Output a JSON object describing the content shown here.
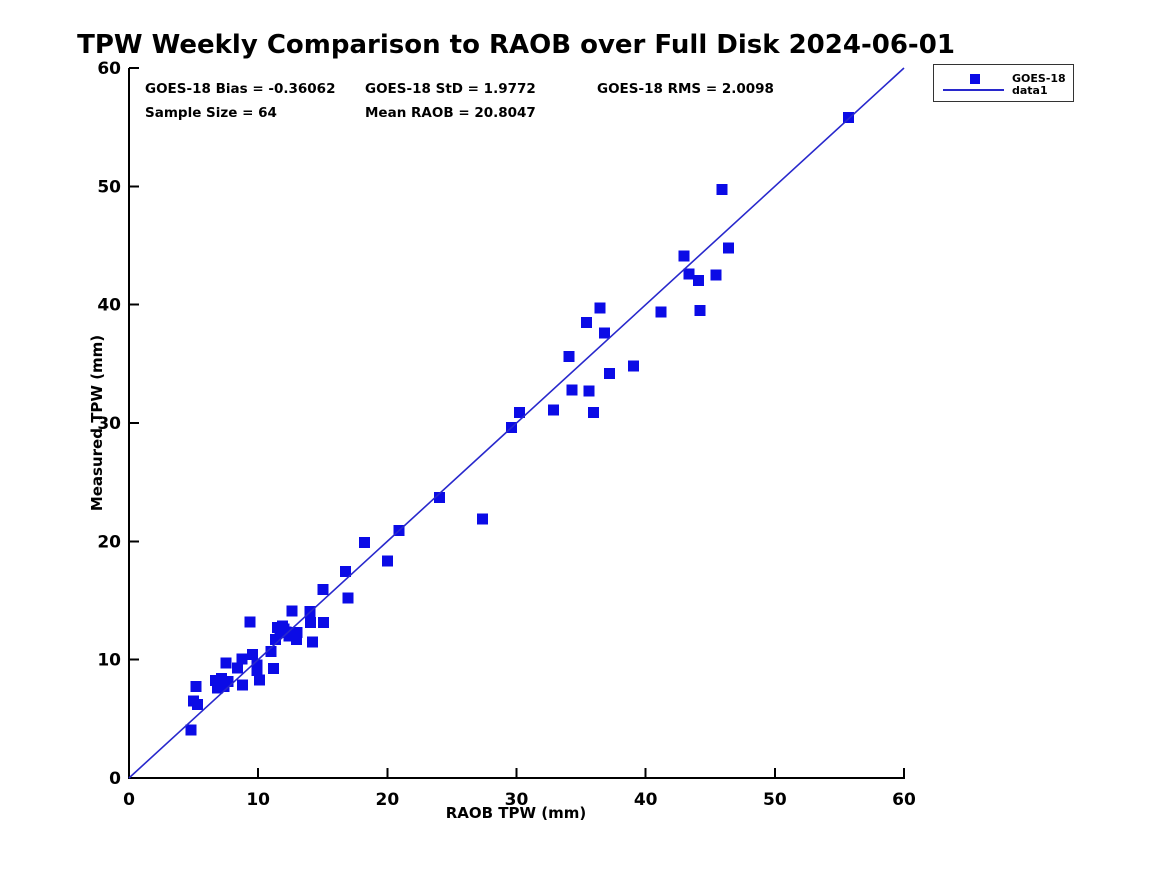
{
  "stats": {
    "bias": "GOES-18 Bias = -0.36062",
    "std": "GOES-18 StD = 1.9772",
    "rms": "GOES-18 RMS = 2.0098",
    "sample_size": "Sample Size = 64",
    "mean_raob": "Mean RAOB = 20.8047"
  },
  "chart_data": {
    "type": "scatter",
    "title": "TPW Weekly Comparison to RAOB over Full Disk 2024-06-01",
    "xlabel": "RAOB TPW (mm)",
    "ylabel": "Measured TPW (mm)",
    "xlim": [
      0,
      60
    ],
    "ylim": [
      0,
      60
    ],
    "x_ticks": [
      0,
      10,
      20,
      30,
      40,
      50,
      60
    ],
    "y_ticks": [
      0,
      10,
      20,
      30,
      40,
      50,
      60
    ],
    "grid": false,
    "colors": {
      "marker": "#0b0be6",
      "line": "#2828cc",
      "axis": "#000000"
    },
    "legend": {
      "position": "top-right",
      "entries": [
        {
          "label": "GOES-18",
          "type": "marker"
        },
        {
          "label": "data1",
          "type": "line"
        }
      ]
    },
    "annotations": [
      "GOES-18 Bias = -0.36062",
      "GOES-18 StD = 1.9772",
      "GOES-18 RMS = 2.0098",
      "Sample Size = 64",
      "Mean RAOB = 20.8047"
    ],
    "series": [
      {
        "name": "GOES-18",
        "type": "scatter",
        "marker": "square",
        "points": [
          [
            4.8,
            4.05
          ],
          [
            5.0,
            6.5
          ],
          [
            5.3,
            6.2
          ],
          [
            5.2,
            7.75
          ],
          [
            6.7,
            8.25
          ],
          [
            7.15,
            8.4
          ],
          [
            6.85,
            7.6
          ],
          [
            7.35,
            7.75
          ],
          [
            7.65,
            8.15
          ],
          [
            7.0,
            8.0
          ],
          [
            7.5,
            9.7
          ],
          [
            8.4,
            9.3
          ],
          [
            8.75,
            10.05
          ],
          [
            9.55,
            10.45
          ],
          [
            9.9,
            9.55
          ],
          [
            9.9,
            9.1
          ],
          [
            8.8,
            7.85
          ],
          [
            10.1,
            8.3
          ],
          [
            11.2,
            9.25
          ],
          [
            11.0,
            10.7
          ],
          [
            9.35,
            13.2
          ],
          [
            11.35,
            11.7
          ],
          [
            11.5,
            12.7
          ],
          [
            11.9,
            12.85
          ],
          [
            11.7,
            12.3
          ],
          [
            12.15,
            12.35
          ],
          [
            12.4,
            12.0
          ],
          [
            12.0,
            12.6
          ],
          [
            12.95,
            11.7
          ],
          [
            13.0,
            12.3
          ],
          [
            14.2,
            11.5
          ],
          [
            12.6,
            14.1
          ],
          [
            14.0,
            14.05
          ],
          [
            14.05,
            13.15
          ],
          [
            15.05,
            13.15
          ],
          [
            15.0,
            15.95
          ],
          [
            16.95,
            15.2
          ],
          [
            16.75,
            17.45
          ],
          [
            18.25,
            19.9
          ],
          [
            20.0,
            18.35
          ],
          [
            20.9,
            20.9
          ],
          [
            24.05,
            23.7
          ],
          [
            27.35,
            21.9
          ],
          [
            29.6,
            29.6
          ],
          [
            30.25,
            30.9
          ],
          [
            32.85,
            31.1
          ],
          [
            34.3,
            32.8
          ],
          [
            35.6,
            32.7
          ],
          [
            35.95,
            30.9
          ],
          [
            34.05,
            35.6
          ],
          [
            35.4,
            38.5
          ],
          [
            36.45,
            39.7
          ],
          [
            36.8,
            37.6
          ],
          [
            37.2,
            34.2
          ],
          [
            39.05,
            34.8
          ],
          [
            41.2,
            39.4
          ],
          [
            44.2,
            39.5
          ],
          [
            42.95,
            44.1
          ],
          [
            43.35,
            42.6
          ],
          [
            44.1,
            42.05
          ],
          [
            45.45,
            42.5
          ],
          [
            46.4,
            44.8
          ],
          [
            45.9,
            49.75
          ],
          [
            55.7,
            55.8
          ]
        ]
      },
      {
        "name": "data1",
        "type": "line",
        "points": [
          [
            0,
            0
          ],
          [
            60,
            60
          ]
        ]
      }
    ]
  }
}
